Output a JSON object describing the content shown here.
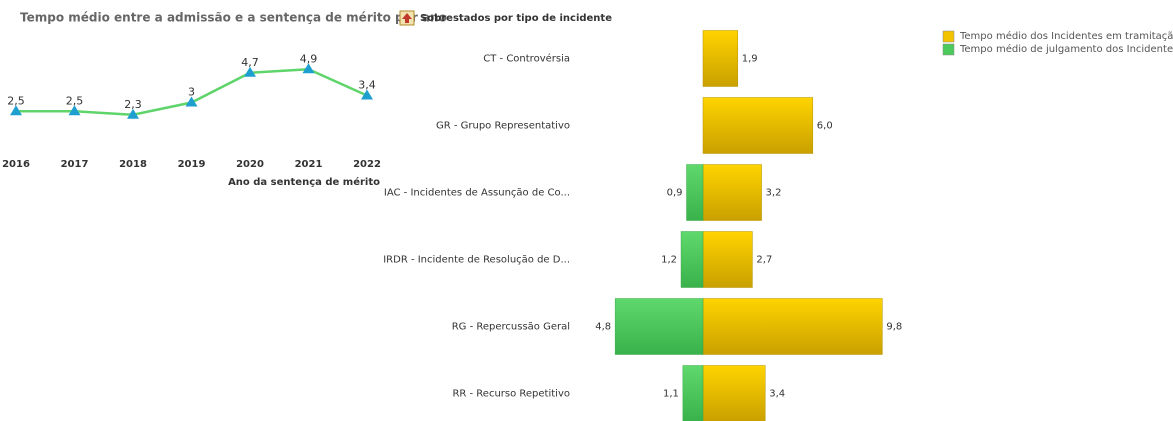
{
  "chart_data": [
    {
      "type": "line",
      "title": "Tempo médio entre a admissão e a sentença de mérito por ano",
      "x_label": "Ano da sentença de mérito",
      "categories": [
        "2016",
        "2017",
        "2018",
        "2019",
        "2020",
        "2021",
        "2022"
      ],
      "values": [
        2.5,
        2.5,
        2.3,
        3,
        4.7,
        4.9,
        3.4
      ],
      "value_labels": [
        "2,5",
        "2,5",
        "2,3",
        "3",
        "4,7",
        "4,9",
        "3,4"
      ],
      "color": "#5fd46a",
      "marker_color": "#1e9fd0",
      "ylim": [
        0,
        6
      ]
    },
    {
      "type": "bar",
      "title": "Sobrestados por tipo de incidente",
      "categories": [
        "CT - Controvérsia",
        "GR - Grupo Representativo",
        "IAC - Incidentes de Assunção de Co...",
        "IRDR - Incidente de Resolução de D...",
        "RG - Repercussão Geral",
        "RR - Recurso Repetitivo"
      ],
      "series": [
        {
          "name": "Tempo médio dos Incidentes em tramitação",
          "color": "#f2c300",
          "values": [
            1.9,
            6.0,
            3.2,
            2.7,
            9.8,
            3.4
          ],
          "value_labels": [
            "1,9",
            "6,0",
            "3,2",
            "2,7",
            "9,8",
            "3,4"
          ]
        },
        {
          "name": "Tempo médio de julgamento dos Incidentes",
          "color": "#4cca5c",
          "values": [
            null,
            null,
            0.9,
            1.2,
            4.8,
            1.1
          ],
          "value_labels": [
            null,
            null,
            "0,9",
            "1,2",
            "4,8",
            "1,1"
          ]
        }
      ],
      "xlim": [
        0,
        10
      ],
      "legend": "top-right"
    }
  ]
}
